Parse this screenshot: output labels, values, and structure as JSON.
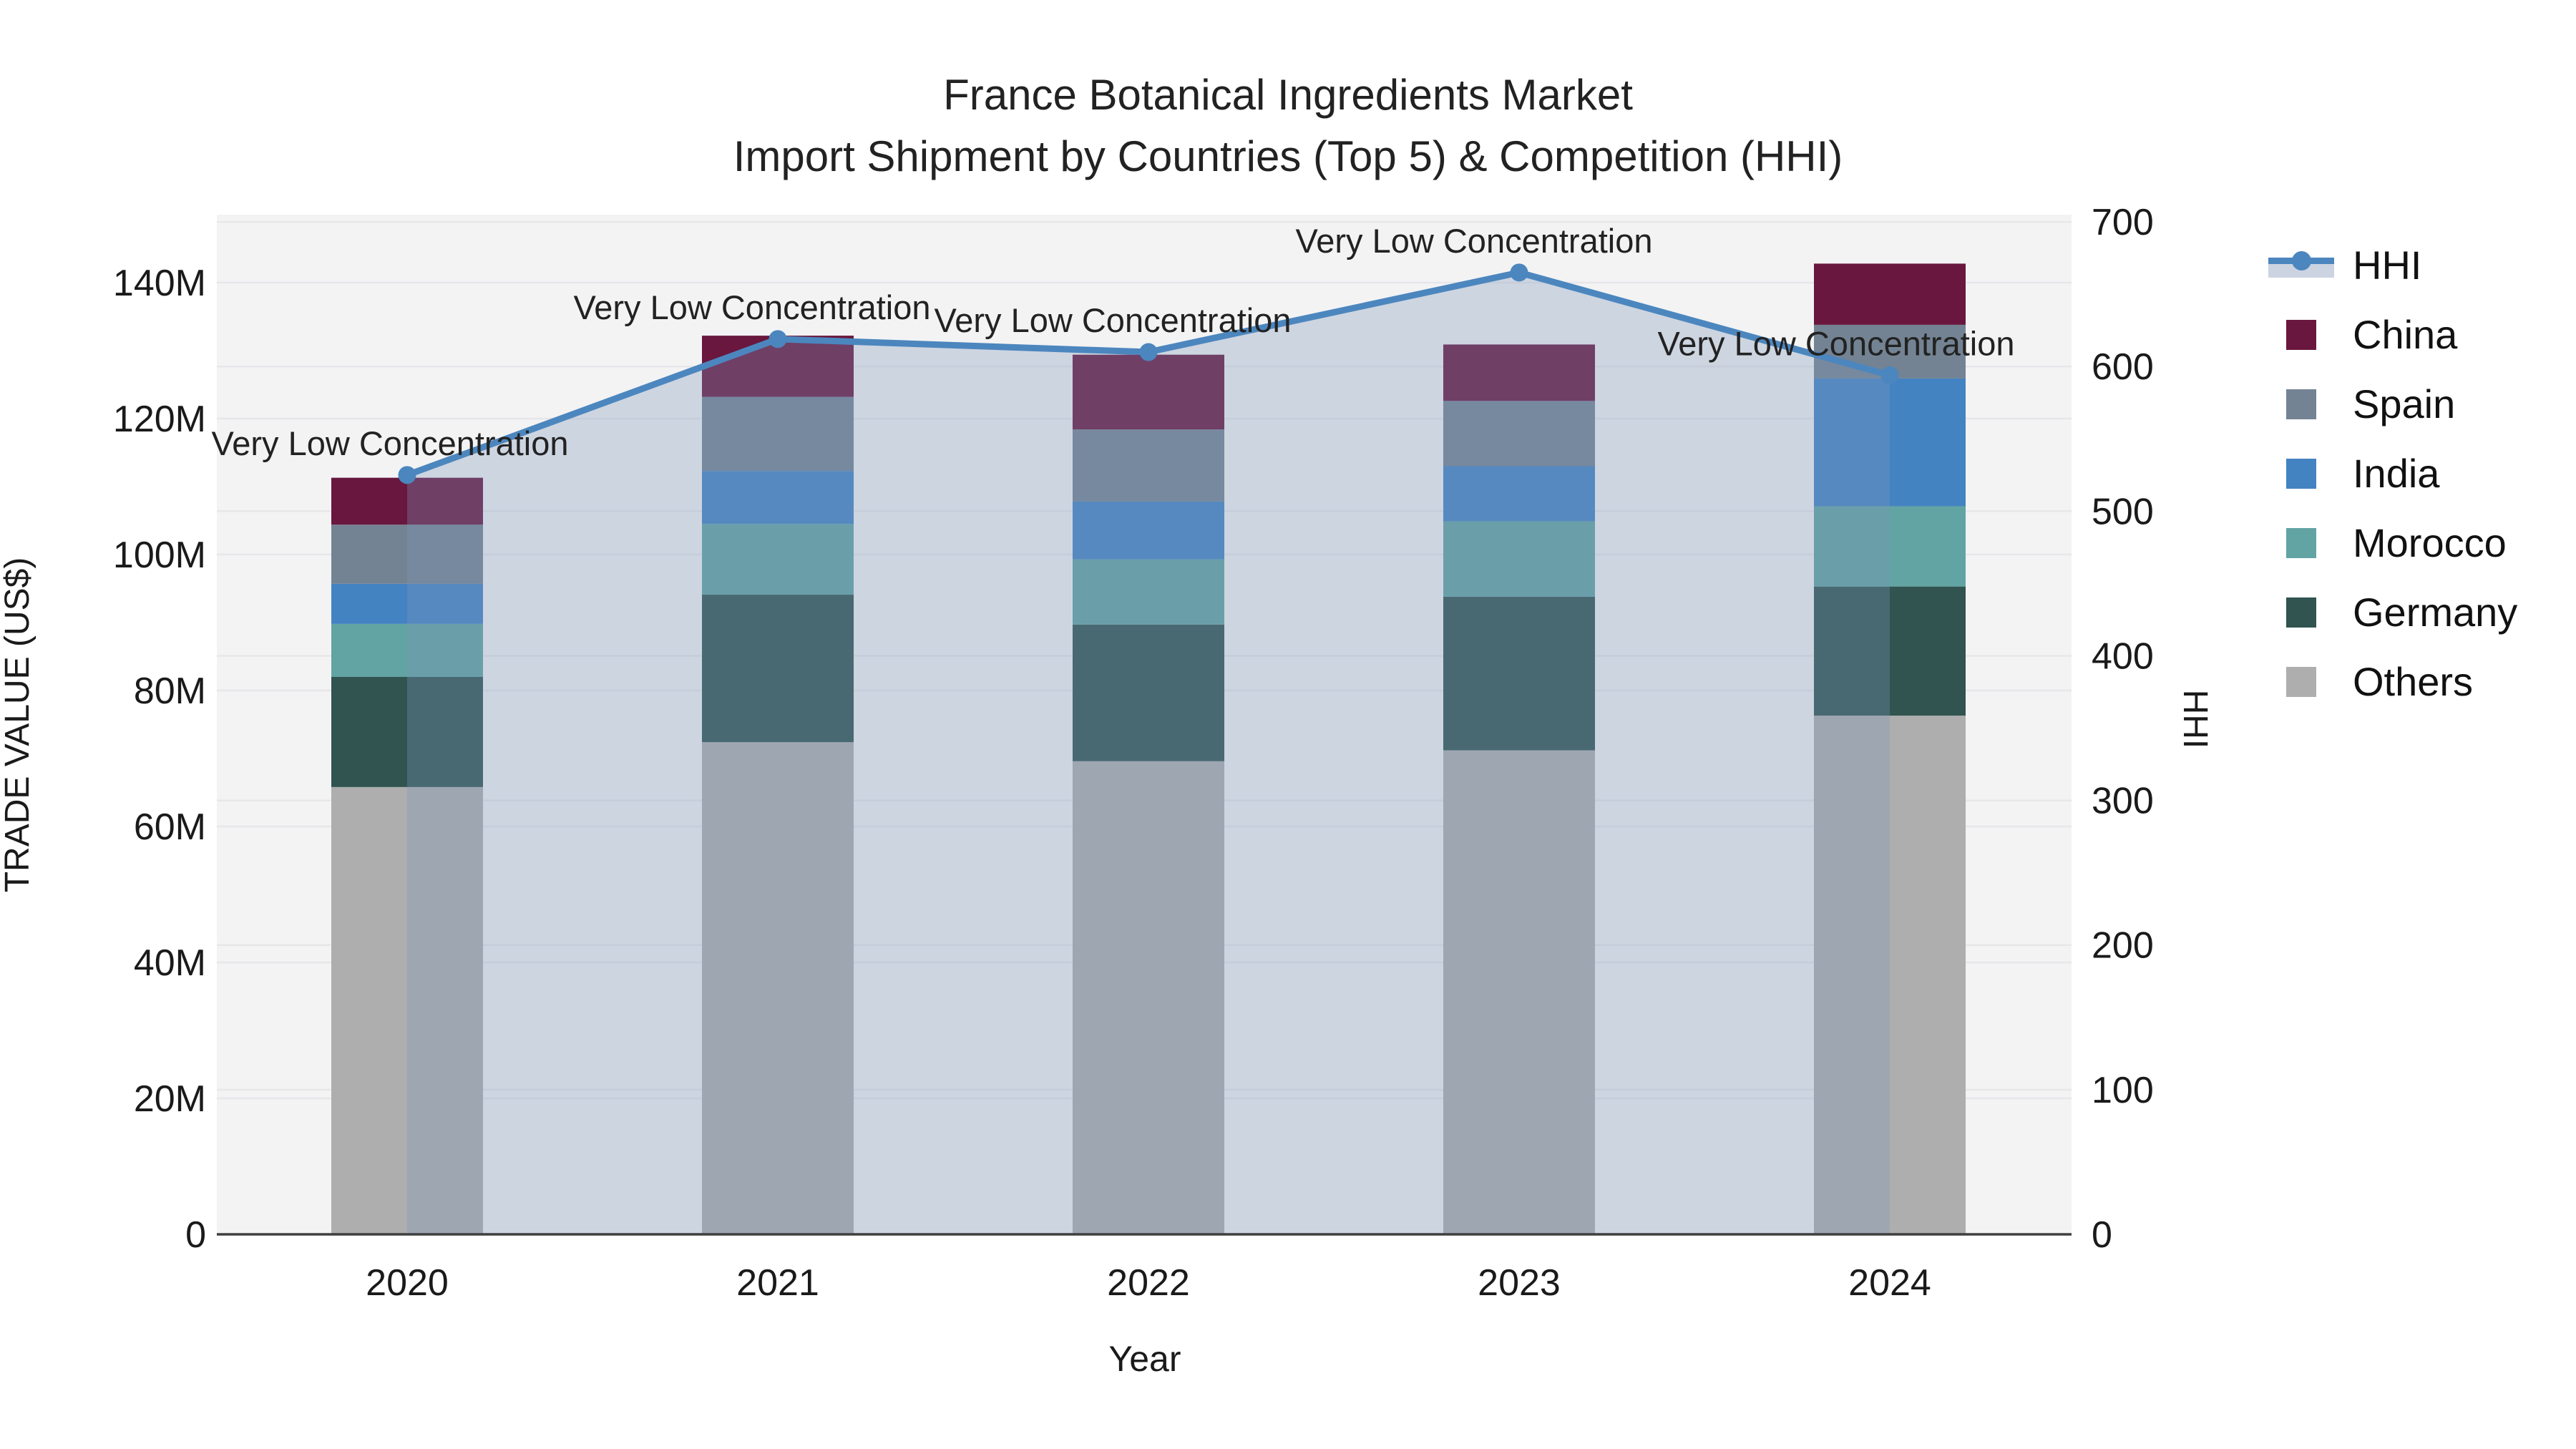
{
  "title": {
    "line1": "France Botanical Ingredients Market",
    "line2": "Import Shipment by Countries (Top 5) & Competition (HHI)"
  },
  "chart_data": {
    "type": "stacked-bar+line",
    "x": [
      "2020",
      "2021",
      "2022",
      "2023",
      "2024"
    ],
    "xlabel": "Year",
    "y1": {
      "label": "TRADE VALUE (US$)",
      "unit": "US$ millions",
      "range": [
        0,
        150
      ],
      "ticks": [
        0,
        20,
        40,
        60,
        80,
        100,
        120,
        140
      ],
      "tick_labels": [
        "0",
        "20M",
        "40M",
        "60M",
        "80M",
        "100M",
        "120M",
        "140M"
      ],
      "grid": true
    },
    "y2": {
      "label": "HHI",
      "range": [
        0,
        705
      ],
      "ticks": [
        0,
        100,
        200,
        300,
        400,
        500,
        600,
        700
      ],
      "tick_labels": [
        "0",
        "100",
        "200",
        "300",
        "400",
        "500",
        "600",
        "700"
      ],
      "grid": true
    },
    "series": [
      {
        "name": "China",
        "color": "#69173E",
        "values": [
          6.9,
          9.0,
          11.0,
          8.3,
          9.0
        ]
      },
      {
        "name": "Spain",
        "color": "#738393",
        "values": [
          8.7,
          10.9,
          10.6,
          9.6,
          7.9
        ]
      },
      {
        "name": "India",
        "color": "#4483C2",
        "values": [
          5.9,
          7.8,
          8.5,
          8.1,
          18.8
        ]
      },
      {
        "name": "Morocco",
        "color": "#62A4A3",
        "values": [
          7.8,
          10.4,
          9.6,
          11.1,
          11.8
        ]
      },
      {
        "name": "Germany",
        "color": "#315450",
        "values": [
          16.2,
          21.7,
          20.1,
          22.6,
          19.0
        ]
      },
      {
        "name": "Others",
        "color": "#AEAEAE",
        "values": [
          65.8,
          72.4,
          69.6,
          71.2,
          76.3
        ]
      }
    ],
    "stack_order_bottom_to_top": [
      "Others",
      "Germany",
      "Morocco",
      "India",
      "Spain",
      "China"
    ],
    "bar_totals_m": [
      111.3,
      132.2,
      129.4,
      130.9,
      142.8
    ],
    "line": {
      "name": "HHI",
      "color": "#4C86BE",
      "fill_color": "rgba(125,148,188,0.32)",
      "values": [
        525,
        619,
        610,
        665,
        594
      ]
    },
    "annotations": [
      {
        "x": "2020",
        "text": "Very Low Concentration"
      },
      {
        "x": "2021",
        "text": "Very Low Concentration"
      },
      {
        "x": "2022",
        "text": "Very Low Concentration"
      },
      {
        "x": "2023",
        "text": "Very Low Concentration"
      },
      {
        "x": "2024",
        "text": "Very Low Concentration"
      }
    ],
    "legend_position": "right",
    "plot_bg": "#f3f3f4",
    "grid_color": "#e7e7ea",
    "axis_line_color": "#3f3f3f"
  },
  "legend": {
    "line_item_label": "HHI"
  }
}
